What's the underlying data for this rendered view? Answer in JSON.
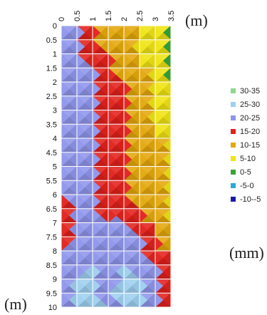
{
  "chart_data": {
    "type": "heatmap",
    "title": "",
    "x_unit": "(m)",
    "y_unit": "(m)",
    "legend_unit": "(mm)",
    "x_ticks": [
      "0",
      "0.5",
      "1",
      "1.5",
      "2",
      "2.5",
      "3",
      "3.5"
    ],
    "y_ticks": [
      "0",
      "0.5",
      "1",
      "1.5",
      "2",
      "2.5",
      "3",
      "3.5",
      "4",
      "4.5",
      "5",
      "5.5",
      "6",
      "6.5",
      "7",
      "7.5",
      "8",
      "8.5",
      "9",
      "9.5",
      "10"
    ],
    "xlim": [
      0,
      3.5
    ],
    "ylim": [
      0,
      10
    ],
    "y_inverted": true,
    "x_axis_position": "top",
    "grid": true,
    "legend_position": "right",
    "legend": [
      {
        "label": "30-35",
        "color": "#8fd88f"
      },
      {
        "label": "25-30",
        "color": "#9fd0f0"
      },
      {
        "label": "20-25",
        "color": "#8f95ea"
      },
      {
        "label": "15-20",
        "color": "#e2211c"
      },
      {
        "label": "10-15",
        "color": "#e4a80c"
      },
      {
        "label": "5-10",
        "color": "#f0e414"
      },
      {
        "label": "0-5",
        "color": "#36a536"
      },
      {
        "label": "-5-0",
        "color": "#2aa9d6"
      },
      {
        "label": "-10--5",
        "color": "#1a1aa8"
      }
    ],
    "class_order_high_to_low": [
      "30-35",
      "25-30",
      "20-25",
      "15-20",
      "10-15",
      "5-10",
      "0-5",
      "-5-0",
      "-10--5"
    ],
    "x": [
      0,
      0.5,
      1,
      1.5,
      2,
      2.5,
      3,
      3.5
    ],
    "y": [
      0,
      0.5,
      1,
      1.5,
      2,
      2.5,
      3,
      3.5,
      4,
      4.5,
      5,
      5.5,
      6,
      6.5,
      7,
      7.5,
      8,
      8.5,
      9,
      9.5,
      10
    ],
    "z": [
      [
        22,
        22,
        17,
        12,
        12,
        12,
        8,
        2
      ],
      [
        22,
        22,
        17,
        12,
        12,
        8,
        8,
        2
      ],
      [
        22,
        22,
        17,
        17,
        12,
        8,
        8,
        2
      ],
      [
        22,
        22,
        22,
        17,
        12,
        12,
        8,
        2
      ],
      [
        22,
        22,
        22,
        17,
        17,
        12,
        8,
        2
      ],
      [
        22,
        22,
        22,
        17,
        17,
        12,
        8,
        8
      ],
      [
        21,
        22,
        22,
        17,
        17,
        12,
        8,
        8
      ],
      [
        21,
        22,
        22,
        17,
        17,
        12,
        8,
        8
      ],
      [
        21,
        21,
        22,
        17,
        17,
        12,
        12,
        8
      ],
      [
        21,
        21,
        22,
        17,
        17,
        12,
        12,
        8
      ],
      [
        21,
        21,
        22,
        17,
        17,
        12,
        12,
        8
      ],
      [
        21,
        21,
        22,
        17,
        17,
        12,
        12,
        8
      ],
      [
        21,
        21,
        22,
        17,
        17,
        12,
        12,
        8
      ],
      [
        17,
        21,
        22,
        17,
        17,
        17,
        12,
        8
      ],
      [
        17,
        21,
        22,
        22,
        22,
        17,
        12,
        8
      ],
      [
        17,
        21,
        22,
        22,
        22,
        22,
        17,
        12
      ],
      [
        21,
        21,
        22,
        22,
        22,
        22,
        17,
        12
      ],
      [
        21,
        22,
        27,
        22,
        27,
        22,
        22,
        17
      ],
      [
        22,
        27,
        27,
        22,
        27,
        27,
        22,
        17
      ],
      [
        22,
        27,
        27,
        22,
        32,
        27,
        22,
        17
      ],
      [
        22,
        27,
        32,
        22,
        27,
        27,
        22,
        17
      ]
    ]
  }
}
